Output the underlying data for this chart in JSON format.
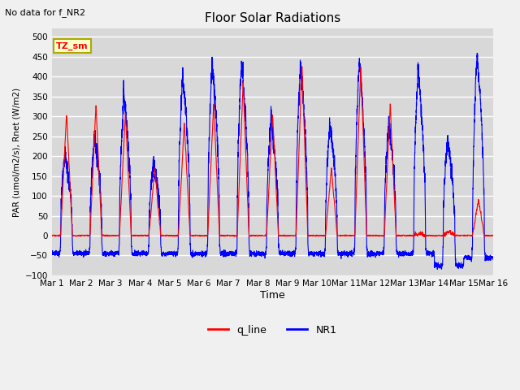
{
  "title": "Floor Solar Radiations",
  "xlabel": "Time",
  "ylabel": "PAR (umol/m2/s), Rnet (W/m2)",
  "ylim": [
    -100,
    520
  ],
  "yticks": [
    -100,
    -50,
    0,
    50,
    100,
    150,
    200,
    250,
    300,
    350,
    400,
    450,
    500
  ],
  "note": "No data for f_NR2",
  "legend_label_1": "q_line",
  "legend_label_2": "NR1",
  "legend_color_1": "red",
  "legend_color_2": "blue",
  "annotation_text": "TZ_sm",
  "annotation_bg": "#ffffcc",
  "annotation_border": "#aaaa00",
  "fig_bg_color": "#f0f0f0",
  "plot_bg_color": "#d8d8d8",
  "grid_color": "white",
  "days": 15,
  "xticklabels": [
    "Mar 1",
    "Mar 2",
    "Mar 3",
    "Mar 4",
    "Mar 5",
    "Mar 6",
    "Mar 7",
    "Mar 8",
    "Mar 9",
    "Mar 10",
    "Mar 11",
    "Mar 12",
    "Mar 13",
    "Mar 14",
    "Mar 15",
    "Mar 16"
  ],
  "q_line_peaks": [
    310,
    330,
    310,
    170,
    285,
    335,
    385,
    310,
    430,
    170,
    430,
    330,
    5,
    10,
    90
  ],
  "NR1_peaks": [
    200,
    250,
    355,
    185,
    405,
    440,
    440,
    290,
    435,
    280,
    440,
    285,
    420,
    235,
    455
  ],
  "night_NR1": [
    -45,
    -45,
    -45,
    -45,
    -45,
    -45,
    -45,
    -45,
    -45,
    -45,
    -45,
    -45,
    -45,
    -75,
    -55
  ]
}
